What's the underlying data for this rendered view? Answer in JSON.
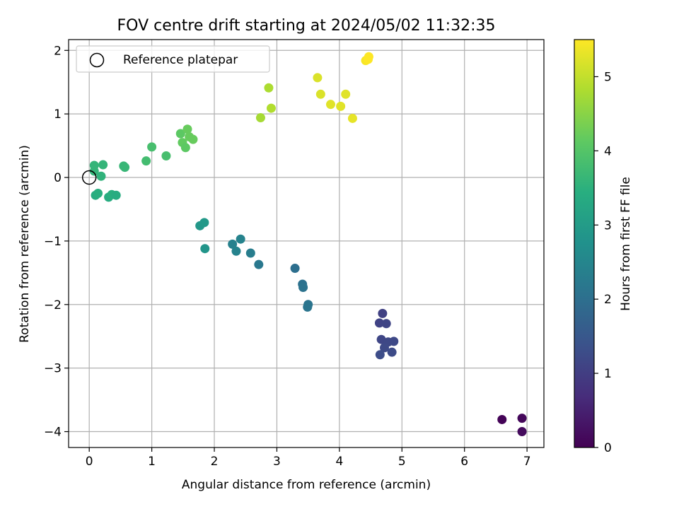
{
  "chart_data": {
    "type": "scatter",
    "title": "FOV centre drift starting at 2024/05/02 11:32:35",
    "xlabel": "Angular distance from reference (arcmin)",
    "ylabel": "Rotation from reference (arcmin)",
    "xlim": [
      -0.33,
      7.27
    ],
    "ylim": [
      -4.25,
      2.17
    ],
    "xticks": [
      0,
      1,
      2,
      3,
      4,
      5,
      6,
      7
    ],
    "yticks": [
      -4,
      -3,
      -2,
      -1,
      0,
      1,
      2
    ],
    "grid": true,
    "legend": {
      "position": "top-left",
      "entries": [
        "Reference platepar"
      ]
    },
    "reference_point": {
      "x": 0,
      "y": 0
    },
    "colorbar": {
      "label": "Hours from first FF file",
      "range": [
        0,
        5.5
      ],
      "ticks": [
        0,
        1,
        2,
        3,
        4,
        5
      ],
      "colormap": "viridis"
    },
    "points": [
      {
        "x": 6.6,
        "y": -3.81,
        "c": 0.05
      },
      {
        "x": 6.92,
        "y": -3.79,
        "c": 0.1
      },
      {
        "x": 6.92,
        "y": -4.0,
        "c": 0.15
      },
      {
        "x": 4.69,
        "y": -2.14,
        "c": 1.05
      },
      {
        "x": 4.64,
        "y": -2.29,
        "c": 1.1
      },
      {
        "x": 4.75,
        "y": -2.3,
        "c": 1.12
      },
      {
        "x": 4.67,
        "y": -2.55,
        "c": 1.15
      },
      {
        "x": 4.78,
        "y": -2.59,
        "c": 1.18
      },
      {
        "x": 4.87,
        "y": -2.58,
        "c": 1.2
      },
      {
        "x": 4.72,
        "y": -2.68,
        "c": 1.22
      },
      {
        "x": 4.84,
        "y": -2.75,
        "c": 1.25
      },
      {
        "x": 4.65,
        "y": -2.79,
        "c": 1.28
      },
      {
        "x": 3.29,
        "y": -1.43,
        "c": 2.0
      },
      {
        "x": 3.41,
        "y": -1.68,
        "c": 2.05
      },
      {
        "x": 3.42,
        "y": -1.73,
        "c": 2.08
      },
      {
        "x": 3.5,
        "y": -2.0,
        "c": 2.1
      },
      {
        "x": 3.49,
        "y": -2.04,
        "c": 2.12
      },
      {
        "x": 2.29,
        "y": -1.05,
        "c": 2.4
      },
      {
        "x": 2.42,
        "y": -0.97,
        "c": 2.45
      },
      {
        "x": 2.35,
        "y": -1.16,
        "c": 2.45
      },
      {
        "x": 2.58,
        "y": -1.19,
        "c": 2.3
      },
      {
        "x": 2.71,
        "y": -1.37,
        "c": 2.2
      },
      {
        "x": 1.77,
        "y": -0.76,
        "c": 2.9
      },
      {
        "x": 1.84,
        "y": -0.71,
        "c": 2.95
      },
      {
        "x": 1.85,
        "y": -1.12,
        "c": 2.85
      },
      {
        "x": 0.1,
        "y": -0.28,
        "c": 3.4
      },
      {
        "x": 0.14,
        "y": -0.25,
        "c": 3.45
      },
      {
        "x": 0.31,
        "y": -0.31,
        "c": 3.4
      },
      {
        "x": 0.36,
        "y": -0.27,
        "c": 3.45
      },
      {
        "x": 0.43,
        "y": -0.28,
        "c": 3.4
      },
      {
        "x": 0.08,
        "y": 0.1,
        "c": 3.6
      },
      {
        "x": 0.08,
        "y": 0.19,
        "c": 3.6
      },
      {
        "x": 0.19,
        "y": 0.02,
        "c": 3.55
      },
      {
        "x": 0.22,
        "y": 0.2,
        "c": 3.6
      },
      {
        "x": 0.55,
        "y": 0.18,
        "c": 3.65
      },
      {
        "x": 0.57,
        "y": 0.16,
        "c": 3.65
      },
      {
        "x": 0.91,
        "y": 0.26,
        "c": 3.8
      },
      {
        "x": 1.0,
        "y": 0.48,
        "c": 3.85
      },
      {
        "x": 1.23,
        "y": 0.34,
        "c": 3.85
      },
      {
        "x": 1.46,
        "y": 0.69,
        "c": 4.1
      },
      {
        "x": 1.57,
        "y": 0.76,
        "c": 4.2
      },
      {
        "x": 1.49,
        "y": 0.55,
        "c": 4.15
      },
      {
        "x": 1.54,
        "y": 0.47,
        "c": 4.1
      },
      {
        "x": 1.6,
        "y": 0.64,
        "c": 4.2
      },
      {
        "x": 1.66,
        "y": 0.6,
        "c": 4.2
      },
      {
        "x": 2.74,
        "y": 0.94,
        "c": 4.75
      },
      {
        "x": 2.87,
        "y": 1.41,
        "c": 4.8
      },
      {
        "x": 2.91,
        "y": 1.09,
        "c": 4.85
      },
      {
        "x": 3.65,
        "y": 1.57,
        "c": 5.2
      },
      {
        "x": 3.7,
        "y": 1.31,
        "c": 5.2
      },
      {
        "x": 3.86,
        "y": 1.15,
        "c": 5.25
      },
      {
        "x": 4.02,
        "y": 1.12,
        "c": 5.25
      },
      {
        "x": 4.1,
        "y": 1.31,
        "c": 5.25
      },
      {
        "x": 4.21,
        "y": 0.93,
        "c": 5.3
      },
      {
        "x": 4.42,
        "y": 1.84,
        "c": 5.45
      },
      {
        "x": 4.46,
        "y": 1.86,
        "c": 5.5
      },
      {
        "x": 4.47,
        "y": 1.9,
        "c": 5.5
      }
    ]
  }
}
